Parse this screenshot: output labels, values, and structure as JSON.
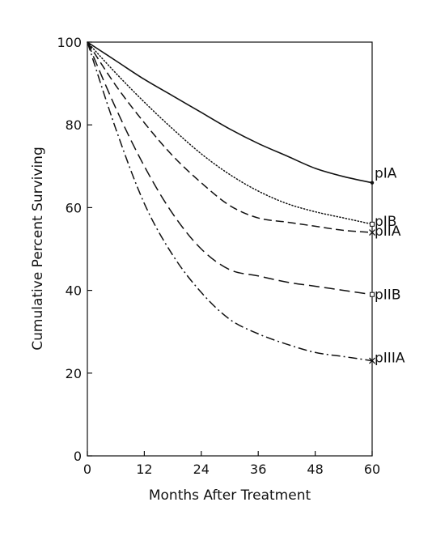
{
  "chart_data": {
    "type": "line",
    "title": "",
    "xlabel": "Months After Treatment",
    "ylabel": "Cumulative Percent Surviving",
    "xlim": [
      0,
      60
    ],
    "ylim": [
      0,
      100
    ],
    "xticks": [
      0,
      12,
      24,
      36,
      48,
      60
    ],
    "yticks": [
      0,
      20,
      40,
      60,
      80,
      100
    ],
    "xtick_labels": [
      "0",
      "12",
      "24",
      "36",
      "48",
      "60"
    ],
    "ytick_labels": [
      "0",
      "20",
      "40",
      "60",
      "80",
      "100"
    ],
    "grid": false,
    "legend": "labels at line ends",
    "series": [
      {
        "name": "pIA",
        "style": "solid",
        "end_marker": "dot",
        "x": [
          0,
          6,
          12,
          18,
          24,
          30,
          36,
          42,
          48,
          54,
          60
        ],
        "y": [
          100,
          95.5,
          91,
          87,
          83,
          79,
          75.5,
          72.5,
          69.5,
          67.5,
          66
        ]
      },
      {
        "name": "pIB",
        "style": "dotted",
        "end_marker": "square",
        "x": [
          0,
          6,
          12,
          18,
          24,
          30,
          36,
          42,
          48,
          54,
          60
        ],
        "y": [
          100,
          92.5,
          85.5,
          79,
          73,
          68,
          64,
          61,
          59,
          57.5,
          56
        ]
      },
      {
        "name": "pIIA",
        "style": "dashed",
        "end_marker": "x",
        "x": [
          0,
          6,
          12,
          18,
          24,
          30,
          36,
          42,
          48,
          54,
          60
        ],
        "y": [
          100,
          89.5,
          80.5,
          72.5,
          66,
          60.5,
          57.5,
          56.5,
          55.5,
          54.5,
          54
        ]
      },
      {
        "name": "pIIB",
        "style": "long-dash",
        "end_marker": "square",
        "x": [
          0,
          6,
          12,
          18,
          24,
          30,
          36,
          42,
          48,
          54,
          60
        ],
        "y": [
          100,
          84,
          70,
          58.5,
          50,
          45,
          43.5,
          42,
          41,
          40,
          39
        ]
      },
      {
        "name": "pIIIA",
        "style": "dash-dot",
        "end_marker": "x",
        "x": [
          0,
          6,
          12,
          18,
          24,
          30,
          36,
          42,
          48,
          54,
          60
        ],
        "y": [
          100,
          79,
          61,
          48.5,
          39.5,
          33,
          29.5,
          27,
          25,
          24,
          23
        ]
      }
    ]
  }
}
